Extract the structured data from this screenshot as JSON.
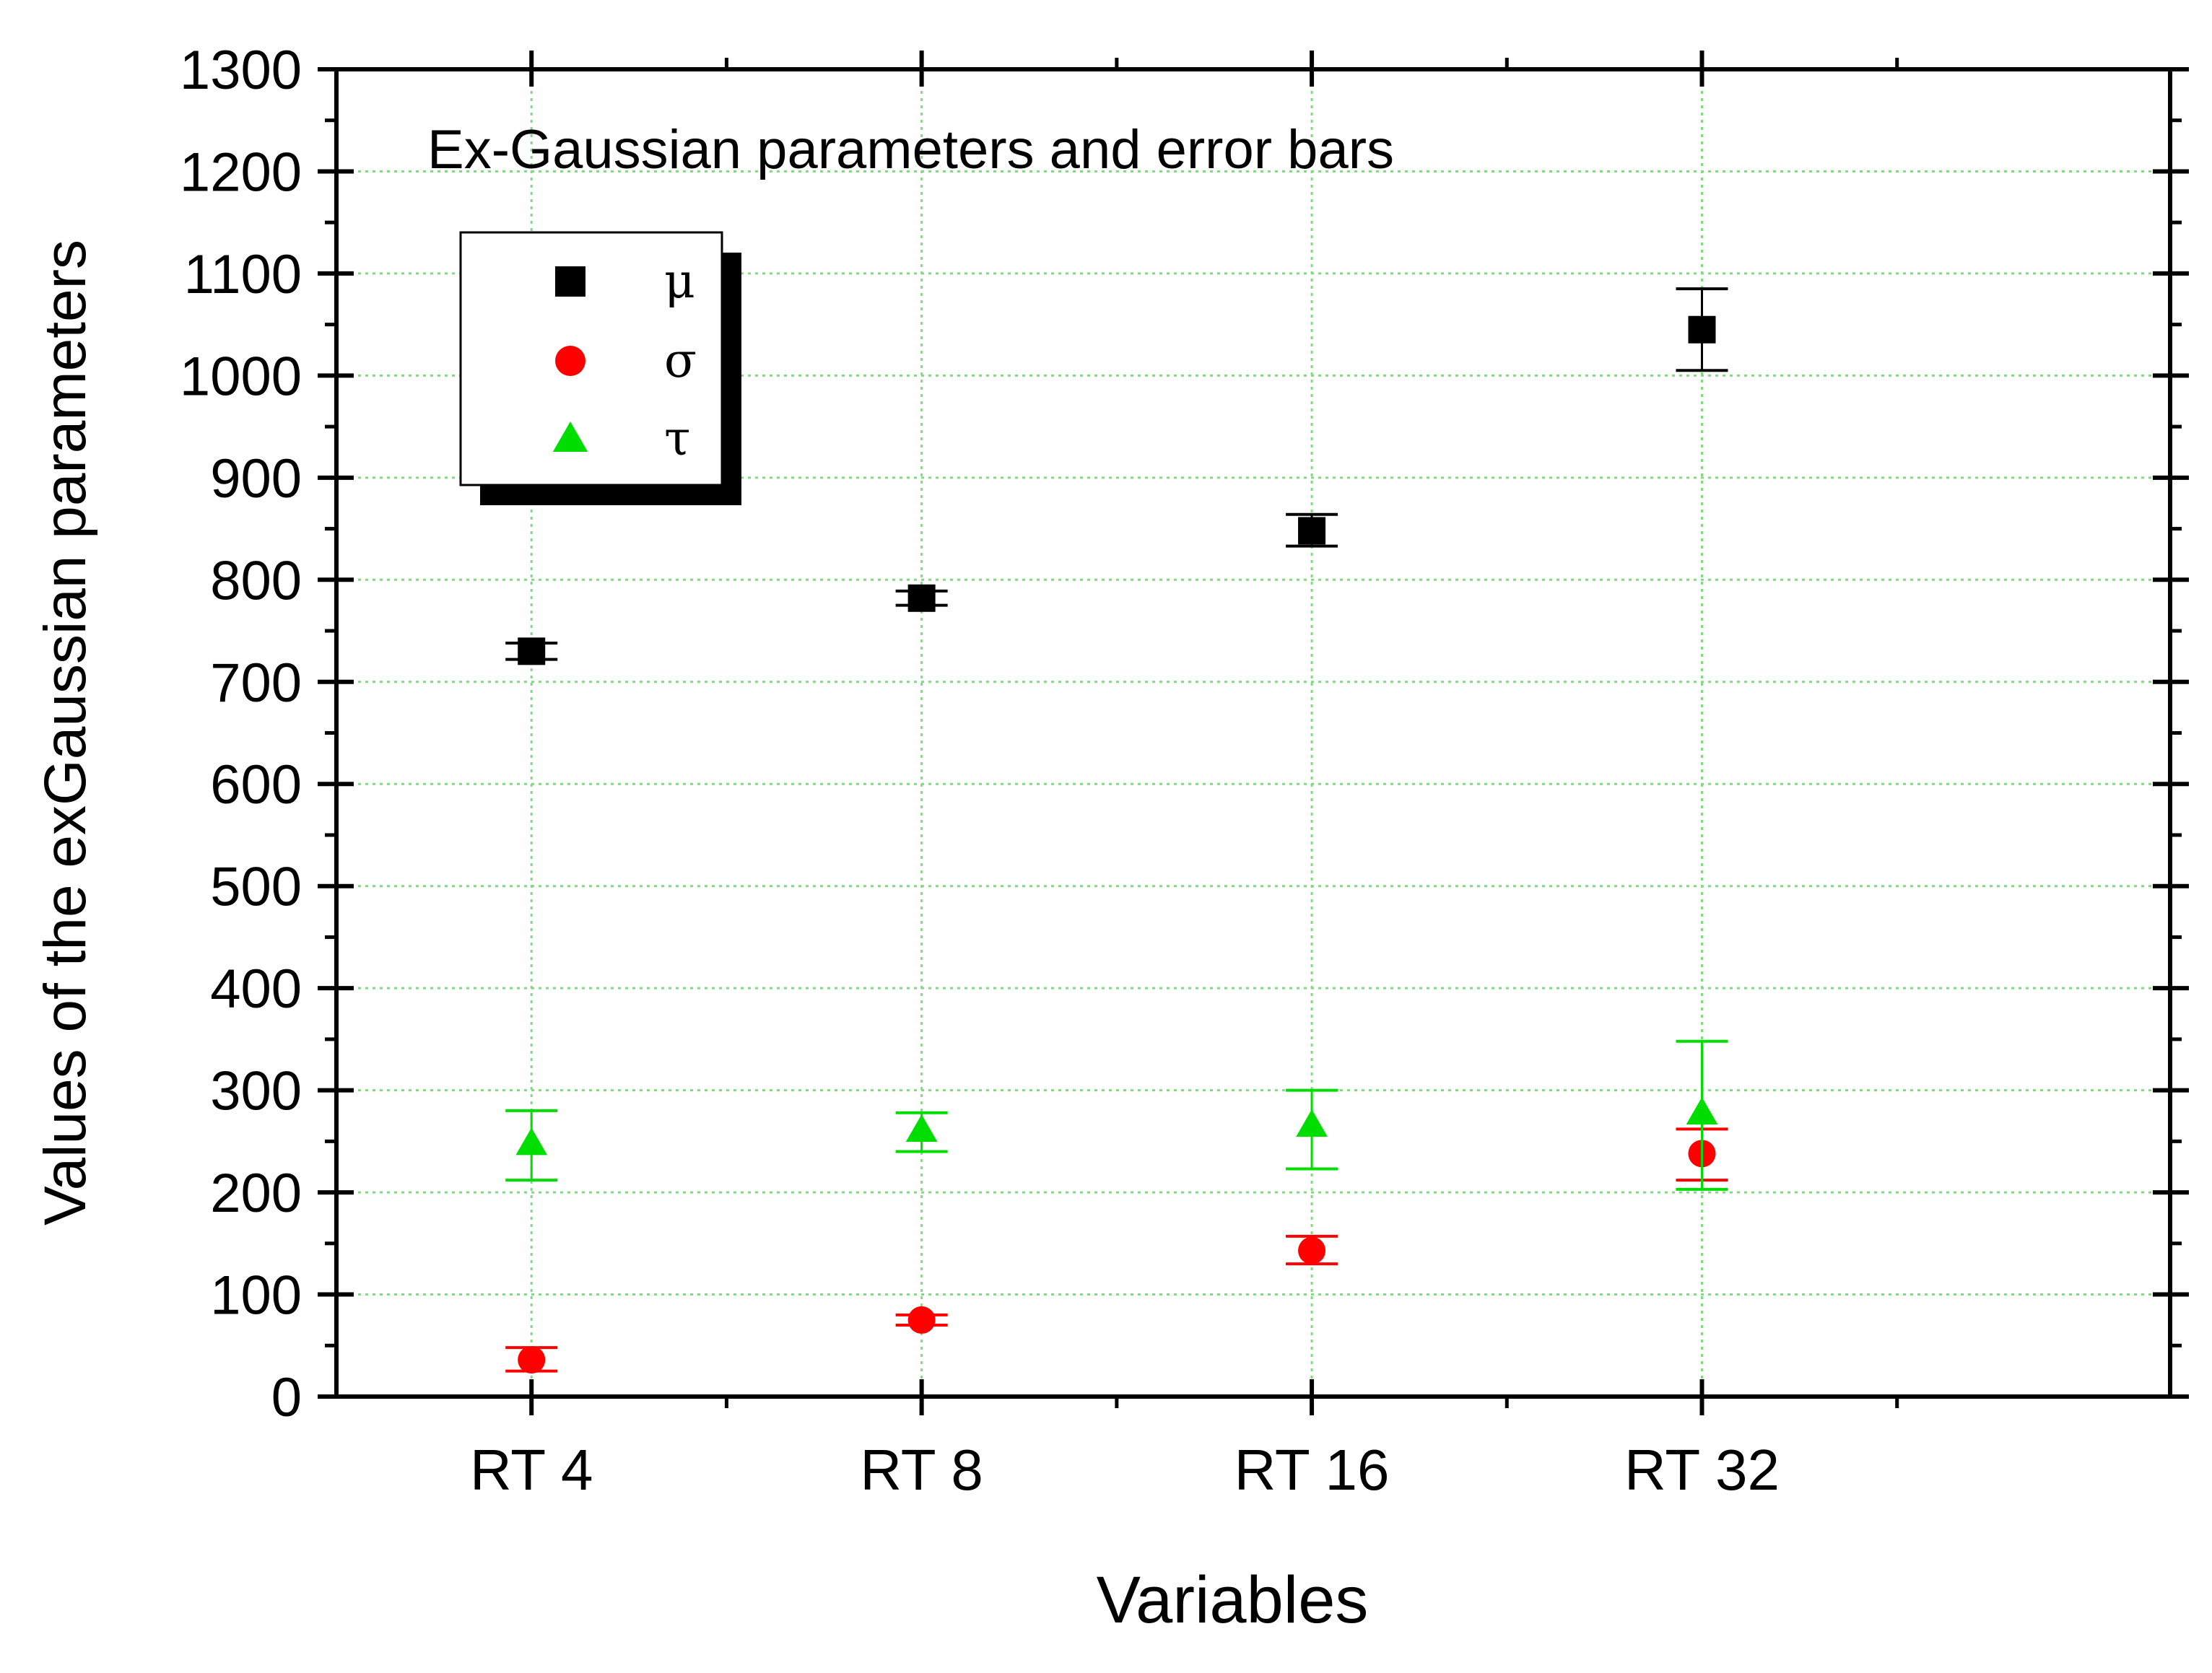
{
  "chart_data": {
    "type": "scatter",
    "title": "Ex-Gaussian parameters and error bars",
    "xlabel": "Variables",
    "ylabel": "Values of the exGaussian parameters",
    "categories": [
      "RT 4",
      "RT 8",
      "RT 16",
      "RT 32"
    ],
    "ylim": [
      0,
      1300
    ],
    "yticks": [
      0,
      100,
      200,
      300,
      400,
      500,
      600,
      700,
      800,
      900,
      1000,
      1100,
      1200,
      1300
    ],
    "grid": true,
    "legend_position": "top-left",
    "series": [
      {
        "name": "μ",
        "marker": "square",
        "color": "#000000",
        "values": [
          730,
          782,
          848,
          1045
        ],
        "err_low": [
          722,
          775,
          833,
          1005
        ],
        "err_high": [
          738,
          789,
          864,
          1085
        ]
      },
      {
        "name": "σ",
        "marker": "circle",
        "color": "#ff0000",
        "values": [
          36,
          75,
          143,
          238
        ],
        "err_low": [
          25,
          70,
          130,
          212
        ],
        "err_high": [
          48,
          80,
          157,
          262
        ]
      },
      {
        "name": "τ",
        "marker": "triangle",
        "color": "#00dd00",
        "values": [
          248,
          261,
          266,
          278
        ],
        "err_low": [
          212,
          240,
          223,
          203
        ],
        "err_high": [
          280,
          278,
          300,
          348
        ]
      }
    ]
  }
}
